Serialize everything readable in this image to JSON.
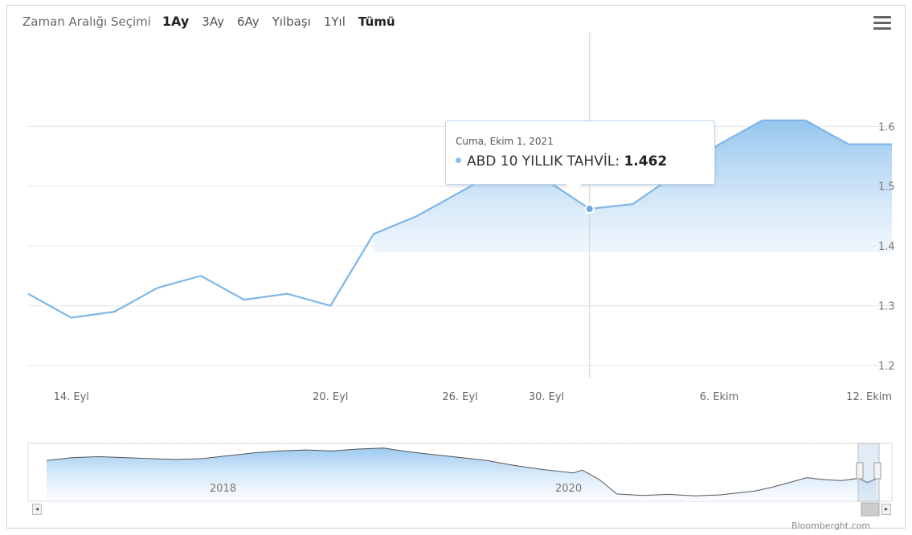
{
  "range_selector": {
    "label": "Zaman Aralığı Seçimi",
    "buttons": [
      "1Ay",
      "3Ay",
      "6Ay",
      "Yılbaşı",
      "1Yıl",
      "Tümü"
    ],
    "active": "1Ay"
  },
  "tooltip": {
    "date": "Cuma, Ekim 1, 2021",
    "series_label": "ABD 10 YILLIK TAHVİL:",
    "value": "1.462"
  },
  "credit": "Bloomberght.com",
  "colors": {
    "line": "#7fb6e8",
    "fill": "#cfe4f7",
    "accent": "#8cc0ec"
  },
  "chart_data": {
    "type": "area",
    "series": [
      {
        "name": "ABD 10 YILLIK TAHVİL",
        "points": [
          [
            13,
            1.32
          ],
          [
            14,
            1.28
          ],
          [
            15,
            1.29
          ],
          [
            16,
            1.33
          ],
          [
            17,
            1.35
          ],
          [
            18,
            1.31
          ],
          [
            19,
            1.32
          ],
          [
            20,
            1.3
          ],
          [
            21,
            1.42
          ],
          [
            22,
            1.45
          ],
          [
            23,
            1.49
          ],
          [
            24,
            1.53
          ],
          [
            25,
            1.51
          ],
          [
            26,
            1.462
          ],
          [
            27,
            1.47
          ],
          [
            28,
            1.52
          ],
          [
            29,
            1.57
          ],
          [
            30,
            1.61
          ],
          [
            31,
            1.61
          ],
          [
            32,
            1.57
          ],
          [
            33,
            1.57
          ]
        ]
      }
    ],
    "x_ticks": [
      {
        "x": 14,
        "label": "14. Eyl"
      },
      {
        "x": 20,
        "label": "20. Eyl"
      },
      {
        "x": 23,
        "label": "26. Eyl"
      },
      {
        "x": 25,
        "label": "30. Eyl"
      },
      {
        "x": 29,
        "label": "6. Ekim"
      },
      {
        "x": 33,
        "label": "12. Ekim"
      }
    ],
    "y_ticks": [
      1.2,
      1.3,
      1.4,
      1.5,
      1.6
    ],
    "ylim": [
      1.2,
      1.63
    ],
    "xlim": [
      13,
      33
    ],
    "highlight_x": 26,
    "navigator": {
      "labels": [
        "2018",
        "2020"
      ],
      "values": [
        2.45,
        2.6,
        2.65,
        2.6,
        2.55,
        2.5,
        2.55,
        2.7,
        2.85,
        2.95,
        3.0,
        2.95,
        3.05,
        3.1,
        2.9,
        2.75,
        2.6,
        2.45,
        2.2,
        2.0,
        1.9,
        1.8,
        1.95,
        1.7,
        1.45,
        0.7,
        0.62,
        0.68,
        0.6,
        0.65,
        0.75,
        0.85,
        1.05,
        1.3,
        1.55,
        1.45,
        1.4,
        1.52,
        1.3,
        1.48
      ],
      "years": [
        2017.0,
        2017.15,
        2017.3,
        2017.45,
        2017.6,
        2017.75,
        2017.9,
        2018.05,
        2018.2,
        2018.35,
        2018.5,
        2018.65,
        2018.8,
        2018.95,
        2019.1,
        2019.25,
        2019.4,
        2019.55,
        2019.7,
        2019.85,
        2019.95,
        2020.05,
        2020.1,
        2020.15,
        2020.2,
        2020.3,
        2020.45,
        2020.6,
        2020.75,
        2020.9,
        2021.0,
        2021.1,
        2021.2,
        2021.3,
        2021.4,
        2021.5,
        2021.6,
        2021.7,
        2021.75,
        2021.8
      ],
      "year_ticks": [
        {
          "x": 2018.0,
          "label": "2018"
        },
        {
          "x": 2020.0,
          "label": "2020"
        }
      ]
    }
  }
}
